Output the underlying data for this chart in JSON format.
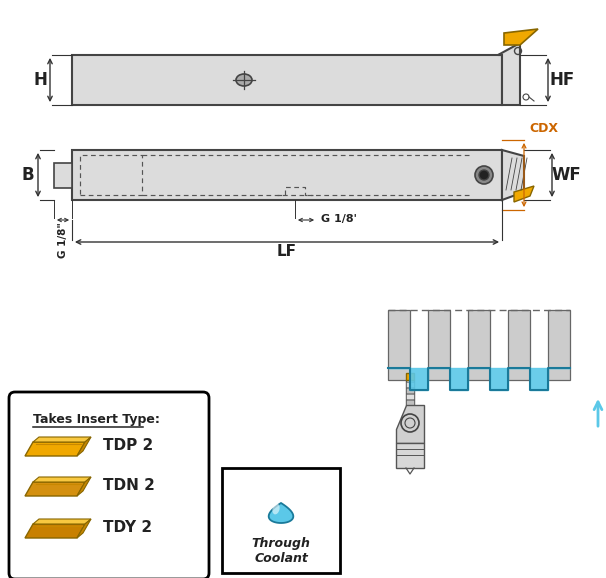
{
  "bg_color": "#ffffff",
  "tool_body_color": "#dcdcdc",
  "tool_edge_color": "#444444",
  "insert_color": "#f0a800",
  "insert_edge_color": "#886600",
  "dim_color": "#333333",
  "text_color": "#222222",
  "orange_text_color": "#cc6600",
  "blue_color": "#5bc8e8",
  "blue_dark": "#1a7a9a",
  "labels": {
    "H": "H",
    "HF": "HF",
    "B": "B",
    "WF": "WF",
    "CDX": "CDX",
    "LF": "LF",
    "G1": "G 1/8\"",
    "G2": "G 1/8'",
    "insert_title": "Takes Insert Type:",
    "tdp": "TDP 2",
    "tdn": "TDN 2",
    "tdy": "TDY 2",
    "coolant": "Through\nCoolant"
  }
}
